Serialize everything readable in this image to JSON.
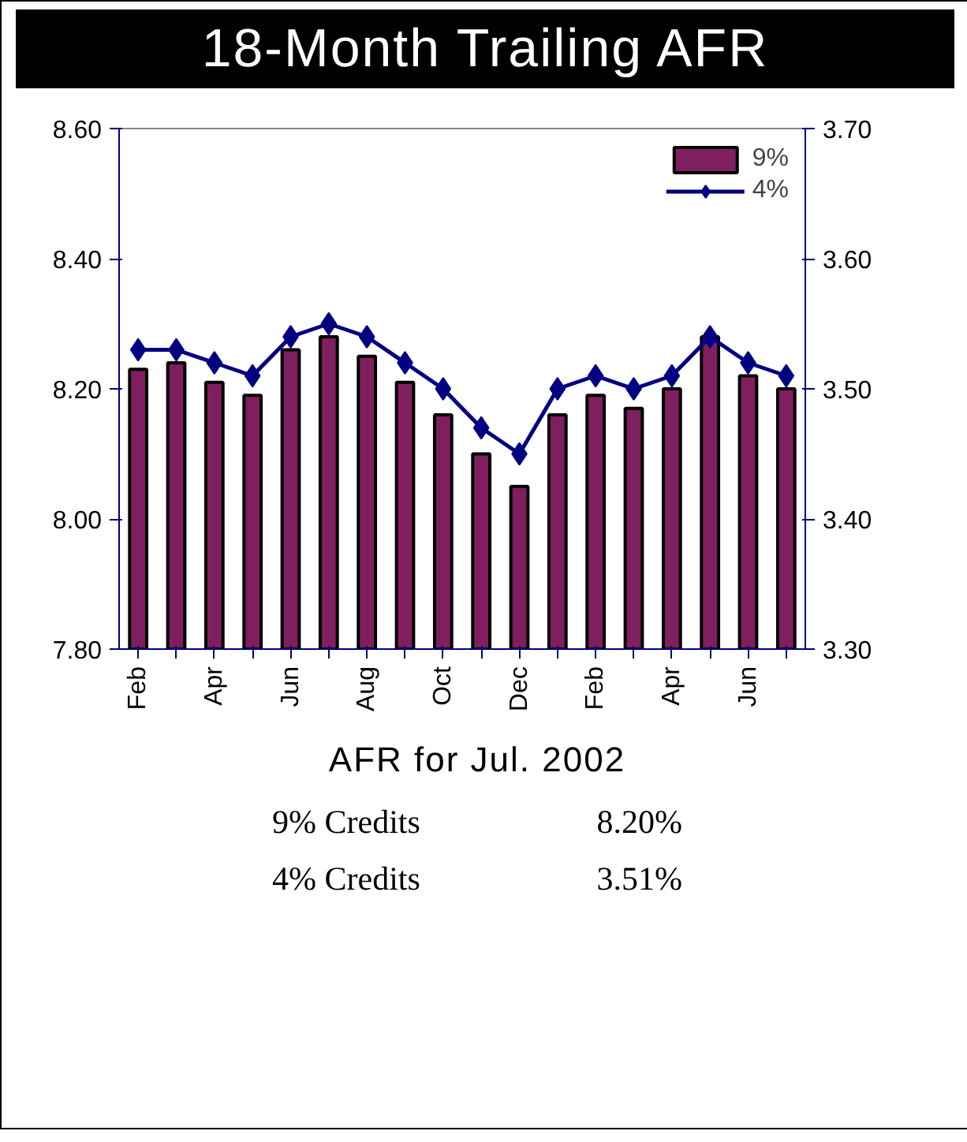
{
  "chart_data": {
    "type": "bar",
    "title": "18-Month Trailing AFR",
    "categories": [
      "Feb",
      null,
      "Apr",
      null,
      "Jun",
      null,
      "Aug",
      null,
      "Oct",
      null,
      "Dec",
      null,
      "Feb",
      null,
      "Apr",
      null,
      "Jun",
      null
    ],
    "series": [
      {
        "name": "9%",
        "color": "#7f1f5f",
        "values": [
          8.23,
          8.24,
          8.21,
          8.19,
          8.26,
          8.28,
          8.25,
          8.21,
          8.16,
          8.1,
          8.05,
          8.16,
          8.19,
          8.17,
          8.2,
          8.28,
          8.22,
          8.2
        ]
      },
      {
        "name": "4%",
        "type": "line",
        "axis": "y2",
        "color": "#000080",
        "marker": "diamond",
        "values": [
          3.53,
          3.53,
          3.52,
          3.51,
          3.54,
          3.55,
          3.54,
          3.52,
          3.5,
          3.47,
          3.45,
          3.5,
          3.51,
          3.5,
          3.51,
          3.54,
          3.52,
          3.51
        ]
      }
    ],
    "ylim": [
      7.8,
      8.6
    ],
    "yticks": [
      {
        "value": 7.8,
        "label": "7.80"
      },
      {
        "value": 8.0,
        "label": "8.00"
      },
      {
        "value": 8.2,
        "label": "8.20"
      },
      {
        "value": 8.4,
        "label": "8.40"
      },
      {
        "value": 8.6,
        "label": "8.60"
      }
    ],
    "y2lim": [
      3.3,
      3.7
    ],
    "y2ticks": [
      {
        "value": 3.3,
        "label": "3.30"
      },
      {
        "value": 3.4,
        "label": "3.40"
      },
      {
        "value": 3.5,
        "label": "3.50"
      },
      {
        "value": 3.6,
        "label": "3.60"
      },
      {
        "value": 3.7,
        "label": "3.70"
      }
    ],
    "grid": false,
    "legend": "top right",
    "annotations": [
      "AFR for Jul. 2002",
      "9% Credits",
      "8.20%",
      "4% Credits",
      "3.51%"
    ]
  }
}
